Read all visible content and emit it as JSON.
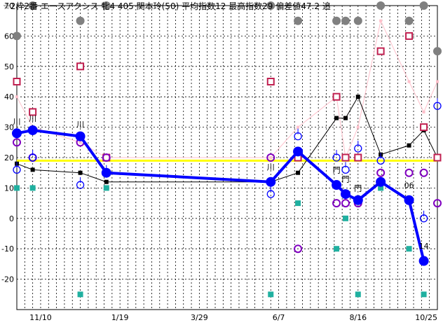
{
  "chart_data": {
    "type": "line",
    "title": "☆2枠2番 エースアクシス 牝4 405 関本玲(50) 平均指数12 最高指数29 偏差値47.2 追",
    "ylim": [
      -30,
      70
    ],
    "y_ticks": [
      -20,
      -10,
      0,
      10,
      20,
      30,
      40,
      50,
      60,
      70
    ],
    "x_range": [
      "2011-10-20",
      "2012-10-25"
    ],
    "x_ticks": [
      {
        "label": "11/10",
        "x": "2011-11-10"
      },
      {
        "label": "1/19",
        "x": "2012-01-19"
      },
      {
        "label": "3/29",
        "x": "2012-03-29"
      },
      {
        "label": "6/7",
        "x": "2012-06-07"
      },
      {
        "label": "8/16",
        "x": "2012-08-16"
      },
      {
        "label": "10/25",
        "x": "2012-10-25"
      }
    ],
    "reference_line": {
      "value": 19,
      "color": "#ffff00"
    },
    "colors": {
      "main": "#0000ff",
      "black_line": "#000000",
      "pink_line": "#ffc0cb",
      "red_square": "#c02050",
      "teal_square": "#20b0a0",
      "gray_dot": "#808080",
      "purple_circle": "#8000c0"
    },
    "series": [
      {
        "style": "main",
        "points": [
          {
            "x": "2011-10-20",
            "y": 28
          },
          {
            "x": "2011-11-03",
            "y": 29
          },
          {
            "x": "2011-12-15",
            "y": 27
          },
          {
            "x": "2012-01-07",
            "y": 15
          },
          {
            "x": "2012-05-31",
            "y": 12
          },
          {
            "x": "2012-06-24",
            "y": 22
          },
          {
            "x": "2012-07-28",
            "y": 11
          },
          {
            "x": "2012-08-05",
            "y": 8
          },
          {
            "x": "2012-08-16",
            "y": 6
          },
          {
            "x": "2012-09-05",
            "y": 12
          },
          {
            "x": "2012-09-30",
            "y": 6
          },
          {
            "x": "2012-10-13",
            "y": -14
          }
        ]
      },
      {
        "style": "black_line",
        "points": [
          {
            "x": "2011-10-20",
            "y": 18
          },
          {
            "x": "2011-11-03",
            "y": 16
          },
          {
            "x": "2011-12-15",
            "y": 15
          },
          {
            "x": "2012-01-07",
            "y": 12
          },
          {
            "x": "2012-05-31",
            "y": 12
          },
          {
            "x": "2012-06-24",
            "y": 15
          },
          {
            "x": "2012-07-28",
            "y": 33
          },
          {
            "x": "2012-08-05",
            "y": 33
          },
          {
            "x": "2012-08-16",
            "y": 40
          },
          {
            "x": "2012-09-05",
            "y": 21
          },
          {
            "x": "2012-09-30",
            "y": 24
          },
          {
            "x": "2012-10-13",
            "y": 29
          },
          {
            "x": "2012-10-25",
            "y": 20
          }
        ]
      },
      {
        "style": "pink_line",
        "points": [
          {
            "x": "2011-10-20",
            "y": 40
          },
          {
            "x": "2011-11-03",
            "y": 30
          },
          {
            "x": "2011-12-15",
            "y": 25
          },
          {
            "x": "2012-01-07",
            "y": 20
          },
          {
            "x": "2012-05-31",
            "y": 20
          },
          {
            "x": "2012-06-24",
            "y": 30
          },
          {
            "x": "2012-07-28",
            "y": 40
          },
          {
            "x": "2012-08-05",
            "y": 20
          },
          {
            "x": "2012-08-16",
            "y": 30
          },
          {
            "x": "2012-09-05",
            "y": 65
          },
          {
            "x": "2012-09-30",
            "y": 45
          },
          {
            "x": "2012-10-13",
            "y": 35
          },
          {
            "x": "2012-10-25",
            "y": 45
          }
        ]
      }
    ],
    "markers": {
      "gray_dots": [
        {
          "x": "2011-10-20",
          "y": 60
        },
        {
          "x": "2011-11-03",
          "y": 70
        },
        {
          "x": "2011-12-15",
          "y": 65
        },
        {
          "x": "2012-01-07",
          "y": 70
        },
        {
          "x": "2012-05-31",
          "y": 70
        },
        {
          "x": "2012-06-24",
          "y": 65
        },
        {
          "x": "2012-07-28",
          "y": 65
        },
        {
          "x": "2012-08-05",
          "y": 65
        },
        {
          "x": "2012-08-16",
          "y": 65
        },
        {
          "x": "2012-09-05",
          "y": 70
        },
        {
          "x": "2012-09-30",
          "y": 65
        },
        {
          "x": "2012-10-13",
          "y": 70
        },
        {
          "x": "2012-10-25",
          "y": 55
        }
      ],
      "red_squares": [
        {
          "x": "2011-10-20",
          "y": 45
        },
        {
          "x": "2011-11-03",
          "y": 35
        },
        {
          "x": "2011-12-15",
          "y": 50
        },
        {
          "x": "2012-01-07",
          "y": 20
        },
        {
          "x": "2012-05-31",
          "y": 45
        },
        {
          "x": "2012-06-24",
          "y": 20
        },
        {
          "x": "2012-07-28",
          "y": 40
        },
        {
          "x": "2012-08-05",
          "y": 20
        },
        {
          "x": "2012-08-16",
          "y": 20
        },
        {
          "x": "2012-09-05",
          "y": 55
        },
        {
          "x": "2012-09-30",
          "y": 60
        },
        {
          "x": "2012-10-13",
          "y": 30
        },
        {
          "x": "2012-10-25",
          "y": 20
        }
      ],
      "teal_squares": [
        {
          "x": "2011-10-20",
          "y": 10
        },
        {
          "x": "2011-11-03",
          "y": 10
        },
        {
          "x": "2011-12-15",
          "y": -25
        },
        {
          "x": "2012-01-07",
          "y": 10
        },
        {
          "x": "2012-05-31",
          "y": -25
        },
        {
          "x": "2012-06-24",
          "y": 5
        },
        {
          "x": "2012-07-28",
          "y": -10
        },
        {
          "x": "2012-08-05",
          "y": 0
        },
        {
          "x": "2012-08-16",
          "y": -25
        },
        {
          "x": "2012-09-05",
          "y": 10
        },
        {
          "x": "2012-09-30",
          "y": -10
        },
        {
          "x": "2012-10-13",
          "y": -25
        }
      ],
      "purple_circles": [
        {
          "x": "2011-10-20",
          "y": 25
        },
        {
          "x": "2011-11-03",
          "y": 20
        },
        {
          "x": "2011-12-15",
          "y": 25
        },
        {
          "x": "2012-01-07",
          "y": 20
        },
        {
          "x": "2012-05-31",
          "y": 20
        },
        {
          "x": "2012-06-24",
          "y": -10
        },
        {
          "x": "2012-07-28",
          "y": 5
        },
        {
          "x": "2012-08-05",
          "y": 5
        },
        {
          "x": "2012-08-16",
          "y": 5
        },
        {
          "x": "2012-09-05",
          "y": 15
        },
        {
          "x": "2012-09-30",
          "y": 15
        },
        {
          "x": "2012-10-13",
          "y": 15
        },
        {
          "x": "2012-10-25",
          "y": 5
        }
      ],
      "blue_circles": [
        {
          "x": "2011-10-20",
          "y": 16
        },
        {
          "x": "2011-11-03",
          "y": 20
        },
        {
          "x": "2011-12-15",
          "y": 11
        },
        {
          "x": "2012-01-07",
          "y": 15
        },
        {
          "x": "2012-05-31",
          "y": 8
        },
        {
          "x": "2012-06-24",
          "y": 27
        },
        {
          "x": "2012-07-28",
          "y": 20
        },
        {
          "x": "2012-08-05",
          "y": 16
        },
        {
          "x": "2012-08-16",
          "y": 23
        },
        {
          "x": "2012-09-05",
          "y": 19
        },
        {
          "x": "2012-10-13",
          "y": 0
        },
        {
          "x": "2012-10-25",
          "y": 37
        }
      ]
    },
    "annotations": [
      {
        "text": "川",
        "x": "2011-10-20",
        "y": 31
      },
      {
        "text": "川",
        "x": "2011-11-03",
        "y": 32
      },
      {
        "text": "川",
        "x": "2011-12-15",
        "y": 30
      },
      {
        "text": "川",
        "x": "2012-05-31",
        "y": 16
      },
      {
        "text": "門",
        "x": "2012-07-28",
        "y": 15
      },
      {
        "text": "門",
        "x": "2012-08-05",
        "y": 12
      },
      {
        "text": "門",
        "x": "2012-08-16",
        "y": 9
      },
      {
        "text": "06",
        "x": "2012-09-30",
        "y": 10
      },
      {
        "text": "14",
        "x": "2012-10-13",
        "y": -10
      }
    ]
  }
}
